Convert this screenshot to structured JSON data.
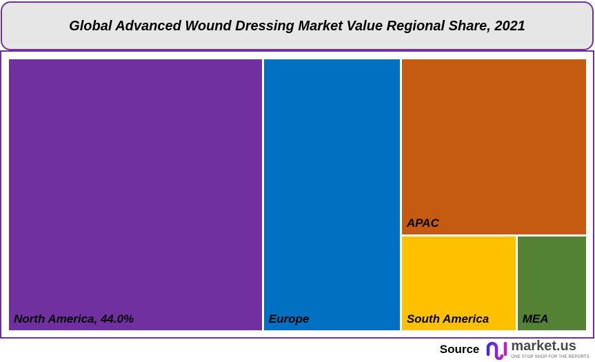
{
  "chart_data": {
    "type": "treemap",
    "title": "Global Advanced Wound Dressing Market Value Regional Share, 2021",
    "unit": "%",
    "items": [
      {
        "name": "North America",
        "label": "North America, 44.0%",
        "value": 44.0,
        "color": "#7030a0"
      },
      {
        "name": "Europe",
        "label": "Europe",
        "value": 23.9,
        "color": "#0070c0"
      },
      {
        "name": "APAC",
        "label": "APAC",
        "value": 20.9,
        "color": "#c55a11"
      },
      {
        "name": "South America",
        "label": "South America",
        "value": 7.0,
        "color": "#ffc000"
      },
      {
        "name": "MEA",
        "label": "MEA",
        "value": 4.2,
        "color": "#548235"
      }
    ]
  },
  "source": {
    "label": "Source",
    "brand": "market.us",
    "tagline": "ONE STOP SHOP FOR THE REPORTS"
  },
  "colors": {
    "border": "#7030a0",
    "title_bg": "#e6e6e6"
  }
}
